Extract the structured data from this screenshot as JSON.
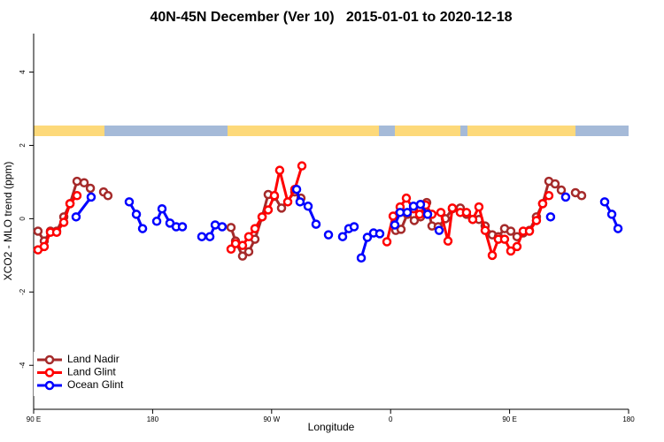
{
  "chart_data": {
    "type": "line",
    "title": "40N-45N December (Ver 10)   2015-01-01 to 2020-12-18",
    "xlabel": "Longitude",
    "ylabel": "XCO2 - MLO trend (ppm)",
    "xlim": [
      90,
      540
    ],
    "ylim": [
      -5.2,
      5.05
    ],
    "xticks": [
      {
        "value": 90,
        "label": "90 E"
      },
      180,
      {
        "value": 270,
        "label": "90 W"
      },
      {
        "value": 360,
        "label": "0"
      },
      {
        "value": 450,
        "label": "90 E"
      },
      {
        "value": 540,
        "label": "180"
      }
    ],
    "yticks": [
      -4,
      -2,
      0,
      2,
      4
    ],
    "legend": "bottomleft",
    "series": [
      {
        "name": "Land Nadir",
        "color": "#a52a2a",
        "x": [
          93.3,
          98,
          102.7,
          107.4,
          112.8,
          117.5,
          122.8,
          128.2,
          132.9,
          null,
          142.9,
          146.2,
          null,
          239.3,
          242.7,
          248,
          252.7,
          257.4,
          262.8,
          267.4,
          272.1,
          277.5,
          287.5,
          292.2,
          null,
          363.9,
          367.9,
          372.6,
          377.9,
          382.6,
          387.3,
          391.3,
          396,
          401.4,
          406.7,
          412.7,
          417.4,
          422.1,
          426.8,
          431.5,
          436.9,
          441.5,
          446.2,
          450.9,
          455.6,
          460.3,
          465,
          470.3,
          475,
          479.7,
          484.4,
          489.1,
          null,
          499.8,
          504.5
        ],
        "values": [
          -0.34,
          -0.61,
          -0.34,
          -0.34,
          0.05,
          0.41,
          1.02,
          0.98,
          0.83,
          null,
          0.73,
          0.63,
          null,
          -0.24,
          -0.61,
          -1.02,
          -0.9,
          -0.56,
          0.05,
          0.66,
          0.61,
          0.29,
          0.73,
          0.56,
          null,
          -0.32,
          -0.29,
          0.12,
          -0.05,
          0.05,
          0.44,
          -0.2,
          -0.22,
          0,
          0.27,
          0.29,
          0.12,
          -0.02,
          -0.02,
          -0.2,
          -0.44,
          -0.49,
          -0.27,
          -0.34,
          -0.49,
          -0.39,
          -0.32,
          0.05,
          0.41,
          1.02,
          0.95,
          0.78,
          null,
          0.71,
          0.63
        ]
      },
      {
        "name": "Land Glint",
        "color": "#ff0000",
        "x": [
          93.3,
          98,
          102.7,
          107.4,
          112.8,
          117.5,
          122.8,
          null,
          239.3,
          242.7,
          248,
          252.7,
          257.4,
          262.8,
          267.4,
          272.1,
          276.1,
          282.2,
          287.5,
          292.9,
          null,
          357.2,
          361.9,
          367.2,
          371.9,
          377.3,
          381.9,
          386.6,
          391.3,
          398,
          403.4,
          406.7,
          412.7,
          417.4,
          422.1,
          426.8,
          431.5,
          436.9,
          441.5,
          446.2,
          450.9,
          455.6,
          460.3,
          465,
          470.3,
          475,
          479.7
        ],
        "values": [
          -0.85,
          -0.76,
          -0.37,
          -0.37,
          -0.1,
          0.41,
          0.63,
          null,
          -0.83,
          -0.68,
          -0.73,
          -0.49,
          -0.27,
          0.05,
          0.24,
          0.63,
          1.32,
          0.46,
          0.8,
          1.44,
          null,
          -0.63,
          0.07,
          0.32,
          0.56,
          0.27,
          0.12,
          0.37,
          0.12,
          0.17,
          -0.61,
          0.29,
          0.17,
          0.17,
          -0.02,
          0.32,
          -0.32,
          -1.0,
          -0.56,
          -0.56,
          -0.88,
          -0.76,
          -0.34,
          -0.34,
          -0.05,
          0.41,
          0.63
        ]
      },
      {
        "name": "Ocean Glint",
        "color": "#0000ff",
        "x": [
          122.1,
          133.5,
          null,
          162.3,
          167.7,
          172.4,
          null,
          183.1,
          187.1,
          193.1,
          197.8,
          202.5,
          null,
          217.2,
          223.3,
          227.3,
          232.6,
          null,
          288.9,
          291.5,
          297.6,
          303.6,
          null,
          313,
          null,
          323.7,
          328.4,
          332.4,
          null,
          337.8,
          342.4,
          347.1,
          351.8,
          null,
          363.2,
          367.2,
          372.6,
          377.3,
          382.6,
          388,
          null,
          396.7,
          null,
          481,
          null,
          492.4,
          null,
          521.9,
          527.3,
          532
        ],
        "values": [
          0.05,
          0.59,
          null,
          0.46,
          0.12,
          -0.27,
          null,
          -0.07,
          0.27,
          -0.12,
          -0.22,
          -0.22,
          null,
          -0.49,
          -0.49,
          -0.17,
          -0.22,
          null,
          0.8,
          0.46,
          0.34,
          -0.15,
          null,
          -0.44,
          null,
          -0.49,
          -0.27,
          -0.22,
          null,
          -1.07,
          -0.51,
          -0.39,
          -0.41,
          null,
          -0.17,
          0.17,
          0.17,
          0.34,
          0.39,
          0.12,
          null,
          -0.32,
          null,
          0.05,
          null,
          0.59,
          null,
          0.46,
          0.12,
          -0.27
        ]
      }
    ]
  }
}
